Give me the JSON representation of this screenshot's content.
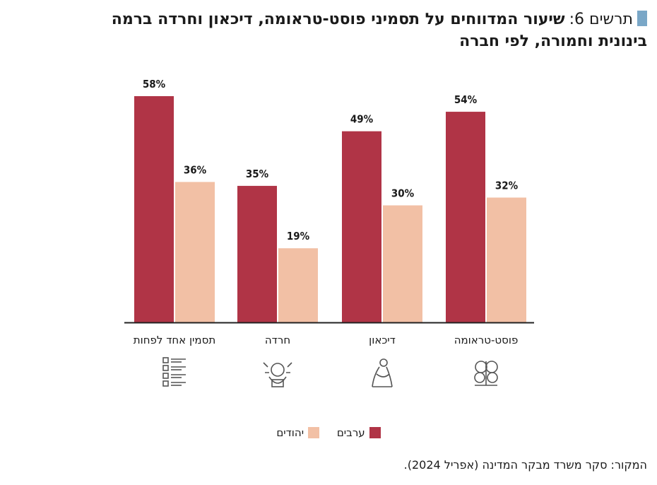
{
  "title": {
    "prefix": "תרשים 6:",
    "line1": "שיעור המדווחים על תסמיני פוסט-טראומה, דיכאון וחרדה ברמה",
    "line2": "בינונית וחמורה, לפי חברה"
  },
  "colors": {
    "arabs": "#b03446",
    "jews": "#f2c0a5",
    "marker": "#7aa7c7"
  },
  "chart_data": {
    "type": "bar",
    "categories": [
      "פוסט-טראומה",
      "דיכאון",
      "חרדה",
      "תסמין אחד לפחות"
    ],
    "category_icons": [
      "brain-icon",
      "sad-person-icon",
      "anxiety-icon",
      "checklist-icon"
    ],
    "series": [
      {
        "name": "ערבים",
        "values": [
          54,
          49,
          35,
          58
        ],
        "labels": [
          "54%",
          "49%",
          "35%",
          "58%"
        ]
      },
      {
        "name": "יהודים",
        "values": [
          32,
          30,
          19,
          36
        ],
        "labels": [
          "32%",
          "30%",
          "19%",
          "36%"
        ]
      }
    ],
    "ylim": [
      0,
      60
    ],
    "grid": false,
    "legend_position": "bottom-center"
  },
  "source": "המקור: סקר משרד מבקר המדינה (אפריל 2024)."
}
